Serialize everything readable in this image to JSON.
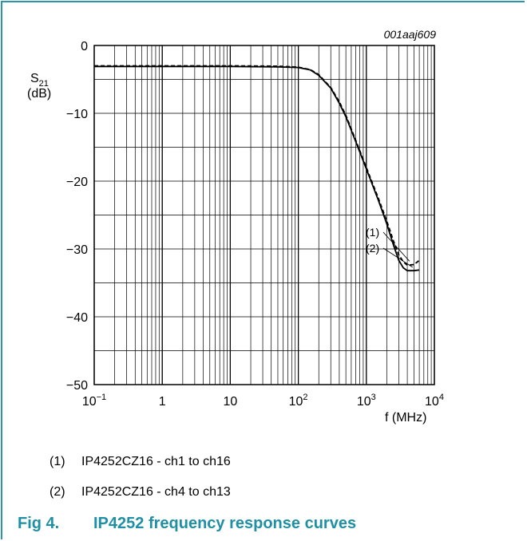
{
  "figure": {
    "id_label": "001aaj609",
    "number": "Fig 4.",
    "title": "IP4252 frequency response curves"
  },
  "legend": [
    {
      "marker": "(1)",
      "text": "IP4252CZ16 - ch1 to ch16"
    },
    {
      "marker": "(2)",
      "text": "IP4252CZ16 - ch4 to ch13"
    }
  ],
  "colors": {
    "accent": "#2a96a8",
    "caption": "#1f8fa3",
    "curve": "#000000"
  },
  "chart_data": {
    "type": "line",
    "x_scale": "log",
    "xlim": [
      0.1,
      10000
    ],
    "ylim": [
      -50,
      0
    ],
    "xlabel": "f (MHz)",
    "ylabel": {
      "main": "S",
      "sub": "21",
      "unit": "(dB)"
    },
    "x_ticks": [
      {
        "value": 0.1,
        "base": "10",
        "exp": "−1"
      },
      {
        "value": 1,
        "base": "1",
        "exp": ""
      },
      {
        "value": 10,
        "base": "10",
        "exp": ""
      },
      {
        "value": 100,
        "base": "10",
        "exp": "2"
      },
      {
        "value": 1000,
        "base": "10",
        "exp": "3"
      },
      {
        "value": 10000,
        "base": "10",
        "exp": "4"
      }
    ],
    "y_ticks": [
      {
        "value": 0,
        "label": "0"
      },
      {
        "value": -10,
        "label": "−10"
      },
      {
        "value": -20,
        "label": "−20"
      },
      {
        "value": -30,
        "label": "−30"
      },
      {
        "value": -40,
        "label": "−40"
      },
      {
        "value": -50,
        "label": "−50"
      }
    ],
    "y_minor_step": 5,
    "grid": true,
    "series": [
      {
        "name": "(1)",
        "style": "solid",
        "x": [
          0.1,
          1,
          10,
          50,
          100,
          150,
          200,
          300,
          400,
          500,
          700,
          1000,
          1500,
          2000,
          2500,
          3000,
          3500,
          4000,
          5000,
          6000
        ],
        "y": [
          -3.1,
          -3.1,
          -3.1,
          -3.15,
          -3.25,
          -3.6,
          -4.4,
          -6.3,
          -8.5,
          -10.5,
          -14.2,
          -18.2,
          -22.8,
          -26.3,
          -29.4,
          -31.7,
          -32.8,
          -33.2,
          -33.2,
          -33.1
        ]
      },
      {
        "name": "(2)",
        "style": "dashed",
        "x": [
          0.1,
          1,
          10,
          50,
          100,
          150,
          200,
          300,
          400,
          500,
          700,
          1000,
          1500,
          2000,
          2500,
          3000,
          3500,
          4000,
          5000,
          6000
        ],
        "y": [
          -3.0,
          -3.0,
          -3.0,
          -3.05,
          -3.2,
          -3.55,
          -4.3,
          -6.2,
          -8.3,
          -10.3,
          -14.0,
          -18.0,
          -22.5,
          -25.9,
          -28.8,
          -30.9,
          -31.9,
          -32.4,
          -32.3,
          -31.7
        ]
      }
    ],
    "annotations": [
      "(1)",
      "(2)"
    ]
  }
}
